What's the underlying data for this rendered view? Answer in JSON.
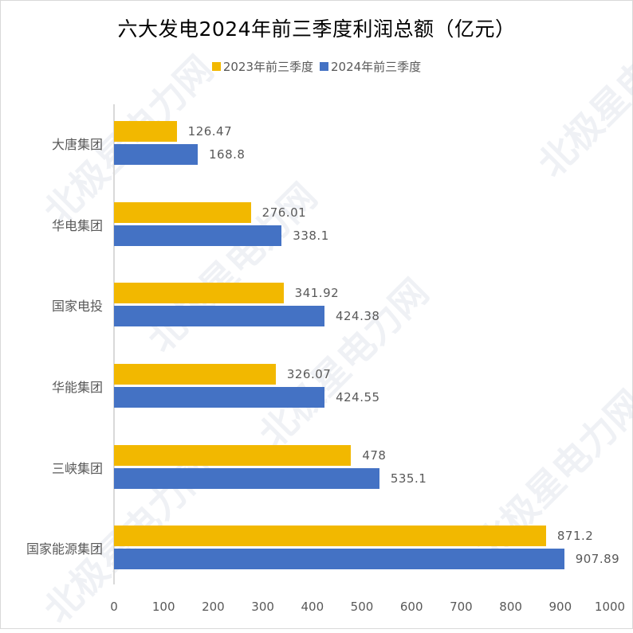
{
  "title": "六大发电2024年前三季度利润总额（亿元）",
  "legend": [
    {
      "label": "2023年前三季度",
      "color": "#F2B800"
    },
    {
      "label": "2024年前三季度",
      "color": "#4472C4"
    }
  ],
  "watermark": "北极星电力网",
  "x_ticks": [
    "0",
    "100",
    "200",
    "300",
    "400",
    "500",
    "600",
    "700",
    "800",
    "900",
    "1000"
  ],
  "categories_display": [
    {
      "name": "大唐集团",
      "v2023": "126.47",
      "v2024": "168.8"
    },
    {
      "name": "华电集团",
      "v2023": "276.01",
      "v2024": "338.1"
    },
    {
      "name": "国家电投",
      "v2023": "341.92",
      "v2024": "424.38"
    },
    {
      "name": "华能集团",
      "v2023": "326.07",
      "v2024": "424.55"
    },
    {
      "name": "三峡集团",
      "v2023": "478",
      "v2024": "535.1"
    },
    {
      "name": "国家能源集团",
      "v2023": "871.2",
      "v2024": "907.89"
    }
  ],
  "chart_data": {
    "type": "bar",
    "orientation": "horizontal",
    "title": "六大发电2024年前三季度利润总额（亿元）",
    "categories": [
      "大唐集团",
      "华电集团",
      "国家电投",
      "华能集团",
      "三峡集团",
      "国家能源集团"
    ],
    "series": [
      {
        "name": "2023年前三季度",
        "color": "#F2B800",
        "values": [
          126.47,
          276.01,
          341.92,
          326.07,
          478,
          871.2
        ]
      },
      {
        "name": "2024年前三季度",
        "color": "#4472C4",
        "values": [
          168.8,
          338.1,
          424.38,
          424.55,
          535.1,
          907.89
        ]
      }
    ],
    "xlabel": "",
    "ylabel": "",
    "xlim": [
      0,
      1000
    ],
    "x_ticks": [
      0,
      100,
      200,
      300,
      400,
      500,
      600,
      700,
      800,
      900,
      1000
    ],
    "grid": false,
    "legend_position": "top",
    "data_labels": true
  }
}
